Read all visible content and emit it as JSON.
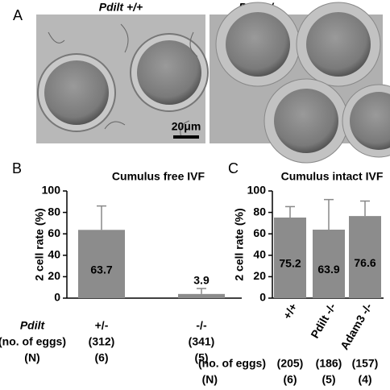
{
  "figure": {
    "panel_label": "A",
    "image_titles": [
      "Pdilt +/+",
      "Pdilt -/-"
    ],
    "scale_bar": "20μm"
  },
  "chart_data": [
    {
      "type": "bar",
      "panel_label": "B",
      "title": "Cumulus free  IVF",
      "y_label": "2 cell rate (%)",
      "categories": [
        "+/-",
        "-/-"
      ],
      "values": [
        63.7,
        3.9
      ],
      "errors": [
        22.3,
        5.1
      ],
      "color": "#8c8c8c",
      "ylim": [
        0,
        100
      ],
      "yticks": [
        0,
        20,
        40,
        60,
        80,
        100
      ],
      "category_label": "Pdilt",
      "eggs_label": "(no. of eggs)",
      "eggs": [
        "(312)",
        "(341)"
      ],
      "n_label": "(N)",
      "n": [
        "(6)",
        "(5)"
      ]
    },
    {
      "type": "bar",
      "panel_label": "C",
      "title": "Cumulus intact IVF",
      "y_label": "2 cell rate (%)",
      "categories": [
        "+/+",
        "Pdilt -/-",
        "Adam3 -/-"
      ],
      "values": [
        75.2,
        63.9,
        76.6
      ],
      "errors": [
        10.2,
        28.1,
        14
      ],
      "color": "#8c8c8c",
      "ylim": [
        0,
        100
      ],
      "yticks": [
        0,
        20,
        40,
        60,
        80,
        100
      ],
      "eggs_label": "(no. of eggs)",
      "eggs": [
        "(205)",
        "(186)",
        "(157)"
      ],
      "n_label": "(N)",
      "n": [
        "(6)",
        "(5)",
        "(4)"
      ]
    }
  ]
}
